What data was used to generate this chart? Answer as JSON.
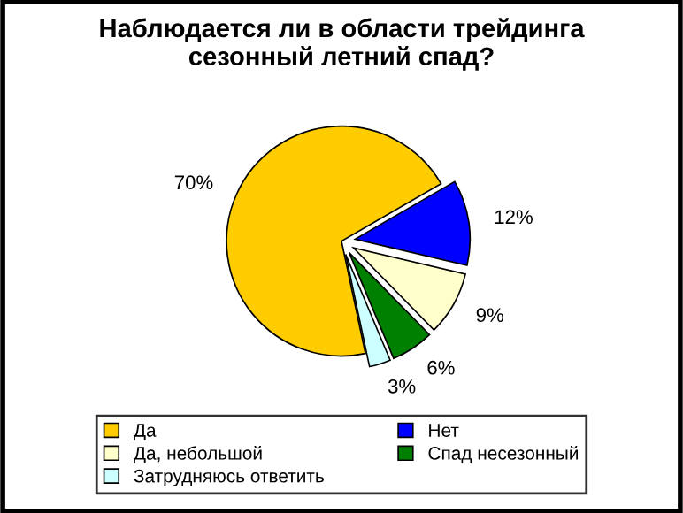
{
  "chart_data": {
    "type": "pie",
    "title": "Наблюдается ли в области трейдинга\nсезонный летний спад?",
    "categories": [
      "Да",
      "Нет",
      "Да, небольшой",
      "Спад несезонный",
      "Затрудняюсь ответить"
    ],
    "values": [
      70,
      12,
      9,
      6,
      3
    ],
    "colors": [
      "#ffcc00",
      "#0000ff",
      "#ffffcc",
      "#008000",
      "#ccffff"
    ],
    "value_labels": [
      "70%",
      "12%",
      "9%",
      "6%",
      "3%"
    ],
    "legend": "bottom"
  }
}
